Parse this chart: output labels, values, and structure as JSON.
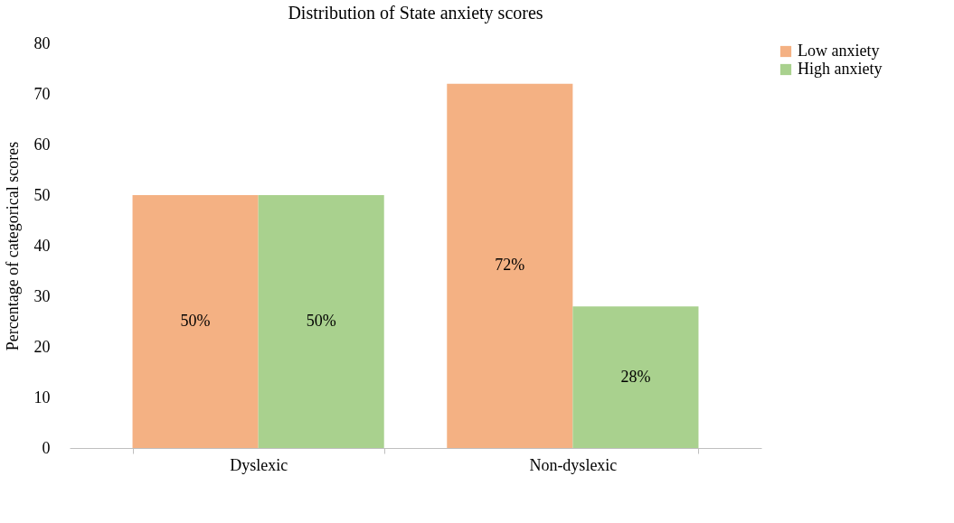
{
  "chart_data": {
    "type": "bar",
    "title": "Distribution of State anxiety scores",
    "ylabel": "Percentage of categorical scores",
    "categories": [
      "Dyslexic",
      "Non-dyslexic"
    ],
    "series": [
      {
        "name": "Low anxiety",
        "color": "#f4b183",
        "values": [
          50,
          72
        ],
        "value_labels": [
          "50%",
          "72%"
        ]
      },
      {
        "name": "High anxiety",
        "color": "#a9d18e",
        "values": [
          50,
          28
        ],
        "value_labels": [
          "50%",
          "28%"
        ]
      }
    ],
    "ylim": [
      0,
      80
    ],
    "yticks": [
      0,
      10,
      20,
      30,
      40,
      50,
      60,
      70,
      80
    ],
    "grid": false,
    "legend": "right"
  }
}
